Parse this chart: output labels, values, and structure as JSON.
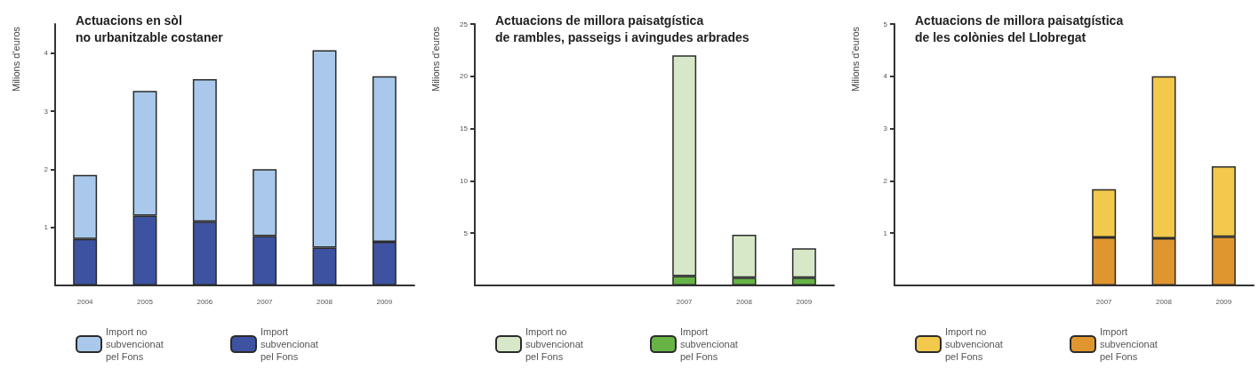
{
  "chart_data": [
    {
      "type": "bar",
      "title": "Actuacions en sòl\nno urbanitzable costaner",
      "ylabel": "Milions d'euros",
      "categories": [
        "2004",
        "2005",
        "2006",
        "2007",
        "2008",
        "2009"
      ],
      "stacked": true,
      "ylim": [
        0,
        4.5
      ],
      "yticks": [
        1,
        2,
        3,
        4
      ],
      "grid": false,
      "legend": "bottom",
      "series": [
        {
          "name": "Import subvencionat pel Fons",
          "color": "#3d52a0",
          "values": [
            0.8,
            1.2,
            1.1,
            0.85,
            0.65,
            0.75
          ]
        },
        {
          "name": "Import no subvencionat pel Fons",
          "color": "#a9c8eb",
          "values": [
            1.1,
            2.15,
            2.45,
            1.15,
            3.4,
            2.85
          ]
        }
      ]
    },
    {
      "type": "bar",
      "title": "Actuacions de millora paisatgística\nde rambles, passeigs i avingudes arbrades",
      "ylabel": "Milions d'euros",
      "categories": [
        null,
        null,
        null,
        "2007",
        "2008",
        "2009"
      ],
      "stacked": true,
      "ylim": [
        0,
        25
      ],
      "yticks": [
        5,
        10,
        15,
        20,
        25
      ],
      "grid": false,
      "legend": "bottom",
      "series": [
        {
          "name": "Import subvencionat pel Fons",
          "color": "#67b346",
          "values": [
            null,
            null,
            null,
            0.9,
            0.75,
            0.75
          ]
        },
        {
          "name": "Import no subvencionat pel Fons",
          "color": "#d6e8c8",
          "values": [
            null,
            null,
            null,
            21.1,
            4.1,
            2.8
          ]
        }
      ]
    },
    {
      "type": "bar",
      "title": "Actuacions de millora paisatgística\nde les colònies del Llobregat",
      "ylabel": "Milions d'euros",
      "categories": [
        null,
        null,
        null,
        "2007",
        "2008",
        "2009"
      ],
      "stacked": true,
      "ylim": [
        0,
        5
      ],
      "yticks": [
        1,
        2,
        3,
        4,
        5
      ],
      "grid": false,
      "legend": "bottom",
      "series": [
        {
          "name": "Import subvencionat pel Fons",
          "color": "#e0962f",
          "values": [
            null,
            null,
            null,
            0.92,
            0.9,
            0.93
          ]
        },
        {
          "name": "Import no subvencionat pel Fons",
          "color": "#f2c94c",
          "values": [
            null,
            null,
            null,
            0.92,
            3.1,
            1.35
          ]
        }
      ]
    }
  ]
}
